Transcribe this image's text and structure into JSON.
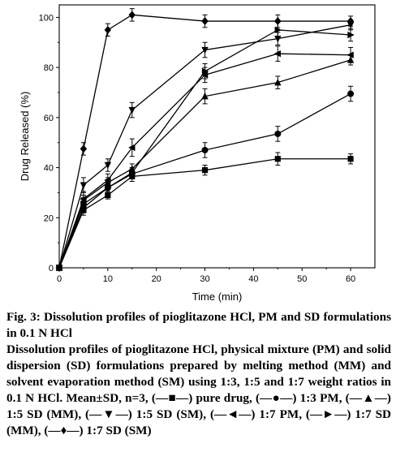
{
  "chart_data": {
    "type": "line",
    "xlabel": "Time (min)",
    "ylabel": "Drug Released (%)",
    "xlim": [
      0,
      65
    ],
    "ylim": [
      0,
      105
    ],
    "xticks": [
      0,
      10,
      20,
      30,
      40,
      50,
      60
    ],
    "yticks": [
      0,
      20,
      40,
      60,
      80,
      100
    ],
    "x": [
      0,
      5,
      10,
      15,
      30,
      45,
      60
    ],
    "legend": "none",
    "grid": false,
    "series": [
      {
        "name": "pure drug",
        "marker": "square",
        "values": [
          0,
          23,
          29,
          36.5,
          39,
          43.5,
          43.5
        ],
        "errors": [
          0,
          2,
          1.5,
          2,
          2,
          2.5,
          2
        ]
      },
      {
        "name": "1:3 PM",
        "marker": "circle",
        "values": [
          0,
          24,
          32,
          37.5,
          47,
          53.5,
          69.5
        ],
        "errors": [
          0,
          2,
          1.5,
          2,
          3,
          3,
          3
        ]
      },
      {
        "name": "1:5 SD (MM)",
        "marker": "triangle-up",
        "values": [
          0,
          27,
          34,
          39.5,
          68.5,
          74,
          83
        ],
        "errors": [
          0,
          2,
          2,
          2,
          3,
          2.5,
          2
        ]
      },
      {
        "name": "1:5 SD (SM)",
        "marker": "triangle-down",
        "values": [
          0,
          33,
          41,
          63,
          87,
          91.5,
          97
        ],
        "errors": [
          0,
          3,
          2.5,
          3,
          3,
          2.5,
          2
        ]
      },
      {
        "name": "1:7 PM",
        "marker": "triangle-left",
        "values": [
          0,
          27.5,
          35,
          48,
          77,
          85.5,
          85
        ],
        "errors": [
          0,
          3,
          2.5,
          3.5,
          3,
          3,
          3
        ]
      },
      {
        "name": "1:7 SD (MM)",
        "marker": "triangle-right",
        "values": [
          0,
          25.5,
          32,
          38,
          78.5,
          95,
          93
        ],
        "errors": [
          0,
          2.5,
          2,
          2,
          3,
          3,
          2.5
        ]
      },
      {
        "name": "1:7 SD (SM)",
        "marker": "diamond",
        "values": [
          0,
          47.5,
          95,
          101,
          98.5,
          98.5,
          98.5
        ],
        "errors": [
          0,
          2.5,
          2.5,
          2.5,
          2.5,
          2.5,
          2
        ]
      }
    ]
  },
  "caption": {
    "title": "Fig. 3: Dissolution profiles of pioglitazone HCl, PM and SD formulations in 0.1 N HCl",
    "description": "Dissolution profiles of pioglitazone HCl, physical mixture (PM) and solid dispersion (SD) formulations prepared by melting method (MM) and solvent evaporation method (SM) using 1:3, 1:5 and 1:7 weight ratios in 0.1 N HCl. Mean±SD, n=3, (—■—) pure drug, (—●—) 1:3 PM, (—▲—) 1:5 SD (MM), (—▼—) 1:5 SD (SM), (—◄—) 1:7 PM, (—►—) 1:7 SD (MM), (—♦—) 1:7 SD (SM)"
  }
}
